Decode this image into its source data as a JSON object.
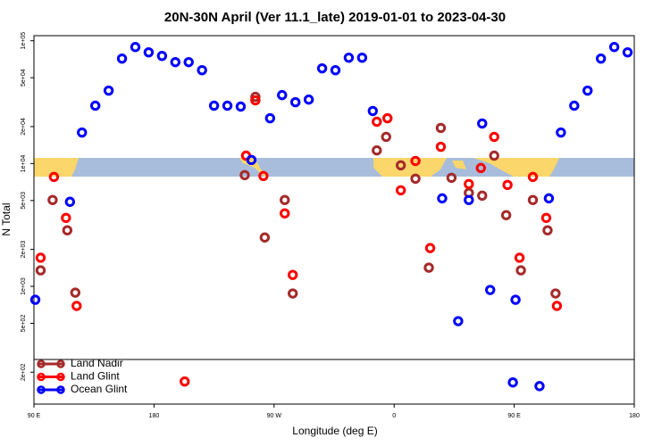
{
  "chart_data": {
    "type": "scatter",
    "title": "20N-30N April (Ver 11.1_late)   2019-01-01 to 2023-04-30",
    "x_label": "Longitude (deg E)",
    "y_label": "N Total",
    "log_y": true,
    "legend": "bottom left",
    "xlim": [
      -270,
      180
    ],
    "ylim": [
      110,
      110000
    ],
    "xticks": [
      {
        "value": -270,
        "label": "90 E"
      },
      {
        "value": -180,
        "label": "180"
      },
      {
        "value": -90,
        "label": "90 W"
      },
      0,
      {
        "value": 90,
        "label": "90 E"
      },
      {
        "value": 180,
        "label": "180"
      }
    ],
    "yticks": [
      {
        "value": 200,
        "label": "2e+02"
      },
      {
        "value": 500,
        "label": "5e+02"
      },
      {
        "value": 1000,
        "label": "1e+03"
      },
      {
        "value": 2000,
        "label": "2e+03"
      },
      {
        "value": 5000,
        "label": "5e+03"
      },
      {
        "value": 10000,
        "label": "1e+04"
      },
      {
        "value": 20000,
        "label": "2e+04"
      },
      {
        "value": 50000,
        "label": "5e+04"
      },
      {
        "value": 100000,
        "label": "1e+05"
      }
    ],
    "series": [
      {
        "name": "Land Nadir",
        "color": "#a52a2a",
        "x": [
          -265,
          -256,
          -245,
          -239,
          -112,
          -104,
          -97,
          -82,
          -76,
          -13,
          -6,
          5,
          16,
          26,
          35,
          43,
          56,
          66,
          75,
          84,
          95,
          104,
          115,
          121
        ],
        "values": [
          1350,
          5050,
          2860,
          889,
          8050,
          34900,
          2500,
          5050,
          875,
          12800,
          16500,
          9680,
          7530,
          1420,
          19500,
          7660,
          5770,
          5480,
          11600,
          3800,
          1350,
          5050,
          2860,
          875
        ]
      },
      {
        "name": "Land Glint",
        "color": "#ff0000",
        "x": [
          -265,
          -255,
          -246,
          -238,
          -157,
          -111,
          -104,
          -98,
          -82,
          -76,
          -13,
          -5,
          5,
          16,
          27,
          35,
          56,
          65,
          75,
          85,
          94,
          104,
          114,
          122
        ],
        "values": [
          1710,
          7780,
          3610,
          693,
          168,
          11600,
          32700,
          7920,
          3930,
          1240,
          21900,
          23400,
          6060,
          10500,
          2050,
          13700,
          6810,
          9200,
          16500,
          6700,
          1710,
          7780,
          3610,
          693
        ]
      },
      {
        "name": "Ocean Glint",
        "color": "#0000ff",
        "x": [
          -269,
          -243,
          -234,
          -224,
          -214,
          -204,
          -194,
          -184,
          -174,
          -164,
          -154,
          -144,
          -135,
          -125,
          -115,
          -107,
          -93,
          -84,
          -74,
          -64,
          -54,
          -44,
          -34,
          -24,
          -16,
          36,
          48,
          56,
          66,
          72,
          89,
          91,
          109,
          116,
          125,
          135,
          145,
          155,
          165,
          175
        ],
        "values": [
          778,
          4880,
          17900,
          29600,
          39300,
          71600,
          88900,
          80500,
          75300,
          67000,
          67000,
          57600,
          29600,
          29600,
          29100,
          10700,
          23400,
          36100,
          31600,
          33200,
          59600,
          57600,
          72800,
          72800,
          26800,
          5210,
          521,
          5050,
          21200,
          935,
          165,
          778,
          154,
          5210,
          17900,
          29600,
          39300,
          71600,
          88900,
          80500
        ]
      }
    ]
  }
}
